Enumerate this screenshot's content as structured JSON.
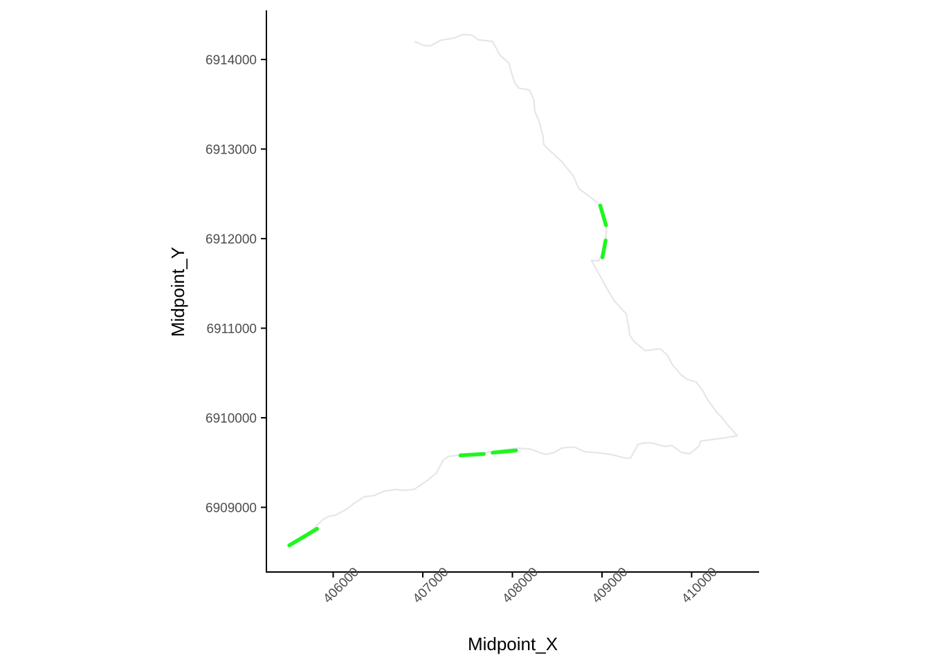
{
  "chart_data": {
    "type": "line",
    "title": "",
    "xlabel": "Midpoint_X",
    "ylabel": "Midpoint_Y",
    "xlim": [
      405250,
      410750
    ],
    "ylim": [
      6908300,
      6914550
    ],
    "x_ticks": [
      406000,
      407000,
      408000,
      409000,
      410000
    ],
    "y_ticks": [
      6909000,
      6910000,
      6911000,
      6912000,
      6913000,
      6914000
    ],
    "x_tick_labels": [
      "406000",
      "407000",
      "408000",
      "409000",
      "410000"
    ],
    "y_tick_labels": [
      "6909000",
      "6910000",
      "6911000",
      "6912000",
      "6913000",
      "6914000"
    ],
    "grid": false,
    "legend": "none",
    "series": [
      {
        "color": "#e6e6e6",
        "style": "solid",
        "points": [
          [
            406915,
            6914200
          ],
          [
            407000,
            6914160
          ],
          [
            407080,
            6914150
          ],
          [
            407200,
            6914215
          ],
          [
            407350,
            6914240
          ],
          [
            407450,
            6914280
          ],
          [
            407550,
            6914270
          ],
          [
            407620,
            6914220
          ],
          [
            407780,
            6914200
          ],
          [
            407860,
            6914050
          ],
          [
            407960,
            6913960
          ],
          [
            408020,
            6913750
          ],
          [
            408070,
            6913680
          ],
          [
            408190,
            6913660
          ],
          [
            408240,
            6913550
          ],
          [
            408250,
            6913420
          ],
          [
            408300,
            6913300
          ],
          [
            408340,
            6913150
          ],
          [
            408350,
            6913050
          ],
          [
            408420,
            6912980
          ],
          [
            408550,
            6912860
          ],
          [
            408680,
            6912700
          ],
          [
            408740,
            6912560
          ],
          [
            408860,
            6912470
          ],
          [
            408950,
            6912400
          ],
          [
            409000,
            6912300
          ],
          [
            409040,
            6912160
          ],
          [
            409050,
            6912080
          ],
          [
            409030,
            6911950
          ],
          [
            409010,
            6911850
          ],
          [
            408960,
            6911750
          ],
          [
            408880,
            6911760
          ],
          [
            408980,
            6911580
          ],
          [
            409080,
            6911400
          ],
          [
            409140,
            6911300
          ],
          [
            409270,
            6911160
          ],
          [
            409300,
            6911000
          ],
          [
            409310,
            6910920
          ],
          [
            409360,
            6910850
          ],
          [
            409480,
            6910750
          ],
          [
            409650,
            6910770
          ],
          [
            409730,
            6910700
          ],
          [
            409780,
            6910600
          ],
          [
            409880,
            6910480
          ],
          [
            409950,
            6910430
          ],
          [
            410050,
            6910400
          ],
          [
            410120,
            6910310
          ],
          [
            410180,
            6910200
          ],
          [
            410280,
            6910060
          ],
          [
            410340,
            6910000
          ],
          [
            410420,
            6909900
          ],
          [
            410510,
            6909800
          ],
          [
            410400,
            6909780
          ],
          [
            410250,
            6909760
          ],
          [
            410100,
            6909740
          ],
          [
            410080,
            6909680
          ],
          [
            409980,
            6909600
          ],
          [
            409890,
            6909610
          ],
          [
            409780,
            6909690
          ],
          [
            409700,
            6909680
          ],
          [
            409550,
            6909720
          ],
          [
            409470,
            6909720
          ],
          [
            409400,
            6909700
          ],
          [
            409320,
            6909550
          ],
          [
            409260,
            6909550
          ],
          [
            409100,
            6909590
          ],
          [
            408950,
            6909610
          ],
          [
            408810,
            6909620
          ],
          [
            408700,
            6909670
          ],
          [
            408630,
            6909670
          ],
          [
            408550,
            6909660
          ],
          [
            408460,
            6909610
          ],
          [
            408380,
            6909590
          ],
          [
            408310,
            6909610
          ],
          [
            408200,
            6909650
          ],
          [
            408050,
            6909660
          ],
          [
            407900,
            6909640
          ],
          [
            407700,
            6909610
          ],
          [
            407500,
            6909590
          ],
          [
            407290,
            6909570
          ],
          [
            407230,
            6909530
          ],
          [
            407150,
            6909380
          ],
          [
            407050,
            6909300
          ],
          [
            406950,
            6909230
          ],
          [
            406900,
            6909200
          ],
          [
            406800,
            6909190
          ],
          [
            406700,
            6909200
          ],
          [
            406570,
            6909180
          ],
          [
            406450,
            6909130
          ],
          [
            406350,
            6909120
          ],
          [
            406240,
            6909050
          ],
          [
            406150,
            6908980
          ],
          [
            406020,
            6908910
          ],
          [
            405950,
            6908900
          ],
          [
            405880,
            6908860
          ],
          [
            405790,
            6908770
          ],
          [
            405550,
            6908590
          ],
          [
            405500,
            6908570
          ]
        ]
      },
      {
        "color": "#1ef71e",
        "style": "dashed",
        "segments": [
          [
            [
              405510,
              6908575
            ],
            [
              405820,
              6908760
            ]
          ],
          [
            [
              407420,
              6909580
            ],
            [
              407680,
              6909595
            ]
          ],
          [
            [
              407780,
              6909610
            ],
            [
              408040,
              6909635
            ]
          ],
          [
            [
              408980,
              6912370
            ],
            [
              409045,
              6912150
            ]
          ],
          [
            [
              409040,
              6911980
            ],
            [
              409005,
              6911790
            ]
          ]
        ]
      }
    ]
  }
}
